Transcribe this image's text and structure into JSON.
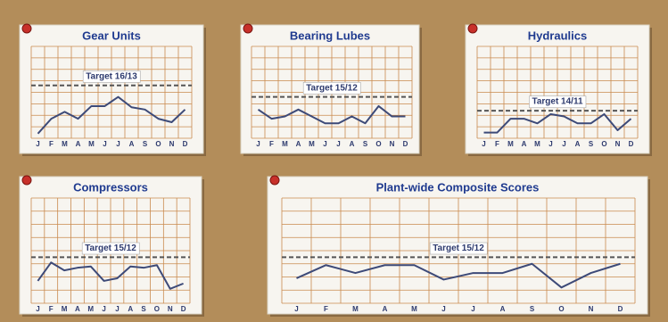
{
  "chart_data": [
    {
      "type": "line",
      "title": "Gear Units",
      "categories": [
        "J",
        "F",
        "M",
        "A",
        "M",
        "J",
        "J",
        "A",
        "S",
        "O",
        "N",
        "D"
      ],
      "values": [
        0.4,
        1.7,
        2.3,
        1.7,
        2.8,
        2.8,
        3.6,
        2.7,
        2.5,
        1.7,
        1.4,
        2.5
      ],
      "color": "#3d4a78",
      "target": {
        "value": 4.6,
        "label": "Target 16/13"
      },
      "ylim": [
        0,
        8
      ],
      "grid": true
    },
    {
      "type": "line",
      "title": "Bearing Lubes",
      "categories": [
        "J",
        "F",
        "M",
        "A",
        "M",
        "J",
        "J",
        "A",
        "S",
        "O",
        "N",
        "D"
      ],
      "values": [
        2.5,
        1.7,
        1.9,
        2.5,
        1.9,
        1.3,
        1.3,
        1.9,
        1.3,
        2.8,
        1.9,
        1.9
      ],
      "color": "#3d4a78",
      "target": {
        "value": 3.6,
        "label": "Target 15/12"
      },
      "ylim": [
        0,
        8
      ],
      "grid": true
    },
    {
      "type": "line",
      "title": "Hydraulics",
      "categories": [
        "J",
        "F",
        "M",
        "A",
        "M",
        "J",
        "J",
        "A",
        "S",
        "O",
        "N",
        "D"
      ],
      "values": [
        0.5,
        0.5,
        1.7,
        1.7,
        1.3,
        2.1,
        1.9,
        1.3,
        1.3,
        2.1,
        0.7,
        1.7
      ],
      "color": "#3d4a78",
      "target": {
        "value": 2.4,
        "label": "Target 14/11"
      },
      "ylim": [
        0,
        8
      ],
      "grid": true
    },
    {
      "type": "line",
      "title": "Compressors",
      "categories": [
        "J",
        "F",
        "M",
        "A",
        "M",
        "J",
        "J",
        "A",
        "S",
        "O",
        "N",
        "D"
      ],
      "values": [
        1.7,
        3.1,
        2.5,
        2.7,
        2.8,
        1.7,
        1.9,
        2.8,
        2.7,
        2.9,
        1.1,
        1.5
      ],
      "color": "#3d4a78",
      "target": {
        "value": 3.5,
        "label": "Target 15/12"
      },
      "ylim": [
        0,
        8
      ],
      "grid": true
    },
    {
      "type": "line",
      "title": "Plant-wide Composite Scores",
      "categories": [
        "J",
        "F",
        "M",
        "A",
        "M",
        "J",
        "J",
        "A",
        "S",
        "O",
        "N",
        "D"
      ],
      "values": [
        1.9,
        2.9,
        2.3,
        2.9,
        2.9,
        1.8,
        2.3,
        2.3,
        3.0,
        1.2,
        2.3,
        3.0
      ],
      "color": "#3d4a78",
      "target": {
        "value": 3.5,
        "label": "Target 15/12"
      },
      "ylim": [
        0,
        8
      ],
      "grid": true
    }
  ]
}
